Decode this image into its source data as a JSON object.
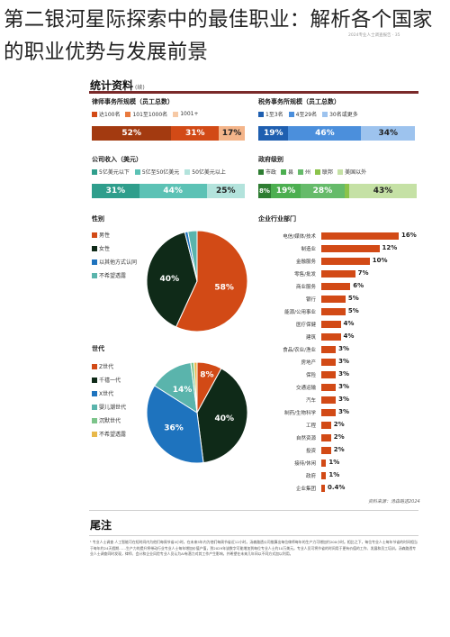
{
  "page": {
    "title": "第二银河星际探索中的最佳职业：解析各个国家的职业优势与发展前景"
  },
  "infographic": {
    "corner_note": "2024专业人士调查报告 · 35",
    "section_title": "统计资料",
    "section_sub": "(续)",
    "firm_size": {
      "title": "律师事务所规模（员工总数）",
      "legend": [
        "达100名",
        "101至1000名",
        "1001+"
      ],
      "values": [
        "52%",
        "31%",
        "17%"
      ],
      "shares": [
        0.52,
        0.31,
        0.17
      ],
      "colors": [
        "#d24a16",
        "#e97a3e",
        "#f6c9a5"
      ]
    },
    "tax_size": {
      "title": "税务事务所规模（员工总数）",
      "legend": [
        "1至3名",
        "4至29名",
        "30名或更多"
      ],
      "values": [
        "19%",
        "46%",
        "34%"
      ],
      "shares": [
        0.19,
        0.46,
        0.34
      ],
      "colors": [
        "#1f5fb0",
        "#4b8fdc",
        "#9dc3ee"
      ]
    },
    "revenue": {
      "title": "公司收入（美元）",
      "legend": [
        "5亿美元以下",
        "5亿至50亿美元",
        "50亿美元以上"
      ],
      "values": [
        "31%",
        "44%",
        "25%"
      ],
      "shares": [
        0.31,
        0.44,
        0.25
      ],
      "colors": [
        "#2f9e8c",
        "#5cc2b5",
        "#b3e3dc"
      ]
    },
    "gov_level": {
      "title": "政府级别",
      "legend": [
        "市政",
        "县",
        "州",
        "联邦",
        "美国以外"
      ],
      "values": [
        "8%",
        "19%",
        "28%",
        "",
        "43%"
      ],
      "shares": [
        0.08,
        0.19,
        0.28,
        0.03,
        0.43
      ],
      "colors": [
        "#2e7d32",
        "#4caf50",
        "#66bb6a",
        "#8bc34a",
        "#c5e1a5"
      ]
    },
    "gender": {
      "title": "性别",
      "legend": [
        "男性",
        "女性",
        "以其他方式认同",
        "不希望透露"
      ],
      "legend_colors": [
        "#d24a16",
        "#0f2a18",
        "#1e73be",
        "#5ab4ac"
      ],
      "chart_data": {
        "type": "pie",
        "categories": [
          "男性",
          "女性",
          "以其他方式认同",
          "不希望透露"
        ],
        "values": [
          58,
          40,
          1,
          3
        ],
        "colors": [
          "#d24a16",
          "#0f2a18",
          "#1e73be",
          "#5ab4ac"
        ]
      },
      "labels": [
        "58%",
        "40%"
      ]
    },
    "generation": {
      "title": "世代",
      "legend": [
        "Z世代",
        "千禧一代",
        "X世代",
        "婴儿潮世代",
        "沉默世代",
        "不希望透露"
      ],
      "legend_colors": [
        "#d24a16",
        "#0f2a18",
        "#1e73be",
        "#5ab4ac",
        "#7cc48a",
        "#e8b84a"
      ],
      "chart_data": {
        "type": "pie",
        "categories": [
          "Z世代",
          "千禧一代",
          "X世代",
          "婴儿潮世代",
          "沉默世代",
          "不希望透露"
        ],
        "values": [
          8,
          40,
          36,
          14,
          1,
          1
        ],
        "colors": [
          "#d24a16",
          "#0f2a18",
          "#1e73be",
          "#5ab4ac",
          "#7cc48a",
          "#e8b84a"
        ]
      },
      "labels": [
        "8%",
        "40%",
        "36%",
        "14%"
      ]
    },
    "industry": {
      "title": "企业行业部门",
      "chart_data": {
        "type": "bar",
        "categories": [
          "电信/媒体/技术",
          "制造业",
          "金融服务",
          "零售/批发",
          "商业服务",
          "银行",
          "能源/公用事业",
          "医疗保健",
          "建筑",
          "食品/农业/渔业",
          "房地产",
          "保险",
          "交通运输",
          "汽车",
          "制药/生物科学",
          "工程",
          "自然资源",
          "投资",
          "接待/休闲",
          "政府",
          "企业集团"
        ],
        "values": [
          16,
          12,
          10,
          7,
          6,
          5,
          5,
          4,
          4,
          3,
          3,
          3,
          3,
          3,
          3,
          2,
          2,
          2,
          1,
          1,
          0.4
        ],
        "labels": [
          "16%",
          "12%",
          "10%",
          "7%",
          "6%",
          "5%",
          "5%",
          "4%",
          "4%",
          "3%",
          "3%",
          "3%",
          "3%",
          "3%",
          "3%",
          "2%",
          "2%",
          "2%",
          "1%",
          "1%",
          "0.4%"
        ]
      }
    },
    "source": "资料来源：汤森路透2024",
    "notes_title": "尾注",
    "notes_text": "¹ 专业人士调查 人工智能可在短时间内为他们每周节省4小时，在未来5年内为他们每周节省近12小时。汤森路透公司推算出每位律师每年的生产力可增加约200小时。相比之下，每位专业人士每年节省的时间相当于每年约24天假期……生产力的提升将带动行业专业人士每年增加价值产值，到2029年该数字可能增加到每位专业人士约10万美元。专业人员可将节省的时间用于更有价值的工作、发展和员工培训。汤森路透专业人士调查同时发现，律师、会计和企业风险专业人员认为AI有潜力对其工作产生影响，并希望在未来几年间以不同方式加以利用。"
  }
}
